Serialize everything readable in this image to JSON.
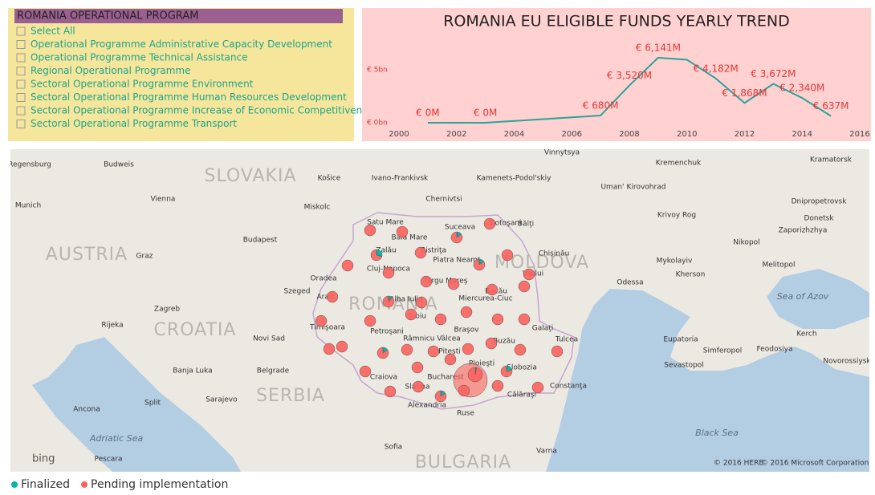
{
  "slicer": {
    "title": "ROMANIA OPERATIONAL PROGRAM",
    "items": [
      "Select All",
      "Operational Programme Administrative Capacity Development",
      "Operational Programme Technical Assistance",
      "Regional Operational Programme",
      "Sectoral Operational Programme Environment",
      "Sectoral Operational Programme Human Resources Development",
      "Sectoral Operational Programme Increase of Economic Competitiveness",
      "Sectoral Operational Programme Transport"
    ]
  },
  "chart_data": {
    "type": "line",
    "title": "ROMANIA EU ELIGIBLE FUNDS YEARLY TREND",
    "x": [
      2001,
      2003,
      2007,
      2008,
      2009,
      2010,
      2011,
      2012,
      2013,
      2014,
      2015
    ],
    "values": [
      0,
      0,
      0.68,
      3.52,
      6.141,
      5.95,
      4.182,
      1.868,
      3.672,
      2.34,
      0.637
    ],
    "value_labels": [
      "€ 0M",
      "€ 0M",
      "€ 680M",
      "€ 3,520M",
      "€ 6,141M",
      null,
      "€ 4,182M",
      "€ 1,868M",
      "€ 3,672M",
      "€ 2,340M",
      "€ 637M"
    ],
    "color": "#2aa39a",
    "label_color": "#e83535",
    "xlim": [
      2000,
      2016
    ],
    "xticks": [
      2000,
      2002,
      2004,
      2006,
      2008,
      2010,
      2012,
      2014,
      2016
    ],
    "ylim": [
      0,
      7.5
    ],
    "yticks": [
      {
        "value": 0,
        "label": "€ 0bn"
      },
      {
        "value": 5,
        "label": "€ 5bn"
      }
    ]
  },
  "map": {
    "legend": [
      {
        "name": "Finalized",
        "color": "#01b8aa"
      },
      {
        "name": "Pending implementation",
        "color": "#fd625e"
      }
    ],
    "bubbles": [
      {
        "pending": 100,
        "finalized": 0
      },
      {
        "pending": 100,
        "finalized": 0
      },
      {
        "pending": 85,
        "finalized": 15
      },
      {
        "pending": 100,
        "finalized": 0
      },
      {
        "pending": 70,
        "finalized": 30
      },
      {
        "pending": 100,
        "finalized": 0
      },
      {
        "pending": 85,
        "finalized": 15
      },
      {
        "pending": 100,
        "finalized": 0
      },
      {
        "pending": 100,
        "finalized": 0
      },
      {
        "pending": 100,
        "finalized": 0
      },
      {
        "pending": 100,
        "finalized": 0
      },
      {
        "pending": 100,
        "finalized": 0
      },
      {
        "pending": 100,
        "finalized": 0
      },
      {
        "pending": 100,
        "finalized": 0
      },
      {
        "pending": 90,
        "finalized": 10
      },
      {
        "pending": 100,
        "finalized": 0
      },
      {
        "pending": 100,
        "finalized": 0
      },
      {
        "pending": 100,
        "finalized": 0
      },
      {
        "pending": 100,
        "finalized": 0
      },
      {
        "pending": 100,
        "finalized": 0
      },
      {
        "pending": 100,
        "finalized": 0
      },
      {
        "pending": 100,
        "finalized": 0
      },
      {
        "pending": 100,
        "finalized": 0
      },
      {
        "pending": 100,
        "finalized": 0
      },
      {
        "pending": 100,
        "finalized": 0
      },
      {
        "pending": 100,
        "finalized": 0
      },
      {
        "pending": 100,
        "finalized": 0
      },
      {
        "pending": 85,
        "finalized": 15
      },
      {
        "pending": 100,
        "finalized": 0
      },
      {
        "pending": 100,
        "finalized": 0
      },
      {
        "pending": 100,
        "finalized": 0
      },
      {
        "pending": 100,
        "finalized": 0
      },
      {
        "pending": 100,
        "finalized": 0
      },
      {
        "pending": 100,
        "finalized": 0
      },
      {
        "pending": 100,
        "finalized": 0
      },
      {
        "pending": 100,
        "finalized": 0
      },
      {
        "pending": 100,
        "finalized": 0
      },
      {
        "pending": 900,
        "finalized": 0
      },
      {
        "pending": 160,
        "finalized": 5
      },
      {
        "pending": 80,
        "finalized": 20
      },
      {
        "pending": 100,
        "finalized": 0
      },
      {
        "pending": 100,
        "finalized": 0
      },
      {
        "pending": 85,
        "finalized": 15
      },
      {
        "pending": 100,
        "finalized": 0
      },
      {
        "pending": 100,
        "finalized": 0
      },
      {
        "pending": 100,
        "finalized": 0
      }
    ],
    "places": [
      "Regensburg",
      "Budweis",
      "SLOVAKIA",
      "Košice",
      "Ivano-Frankivsk",
      "Chernivtsi",
      "Kamenets-Podol'skiy",
      "Vinnytsya",
      "Kremenchuk",
      "Kramatorsk",
      "Munich",
      "Vienna",
      "Uman'",
      "Kirovohrad",
      "Dnipropetrovsk",
      "Donetsk",
      "Krivoy Rog",
      "Budapest",
      "Miskolc",
      "Satu Mare",
      "Baia Mare",
      "Suceava",
      "Botoşani",
      "Bălţi",
      "MOLDOVA",
      "Chişinău",
      "Zaporizhzhya",
      "Nikopol",
      "Mykolayiv",
      "Odessa",
      "Kherson",
      "Melitopol",
      "AUSTRIA",
      "Graz",
      "Oradea",
      "Cluj-Napoca",
      "Zalău",
      "Bistriţa",
      "Piatra Neamţ",
      "Vaslui",
      "Târgu Mureş",
      "Bacău",
      "Arad",
      "Szeged",
      "ROMANIA",
      "Alba Iulia",
      "Sibiu",
      "Braşov",
      "Miercurea-Ciuc",
      "Galaţi",
      "Timişoara",
      "Zagreb",
      "CROATIA",
      "Rijeka",
      "Novi Sad",
      "Belgrade",
      "Petroşani",
      "Râmnicu Vâlcea",
      "Piteşti",
      "Buzău",
      "Tulcea",
      "Craiova",
      "Bucharest",
      "Ploieşti",
      "Slobozia",
      "Constanţa",
      "Călăraşi",
      "Slatina",
      "Alexandria",
      "Ruse",
      "Varna",
      "Sarajevo",
      "SERBIA",
      "Sofia",
      "BULGARIA",
      "Adriatic Sea",
      "Black Sea",
      "Sea of Azov",
      "Sevastopol",
      "Simferopol",
      "Feodosiya",
      "Kerch",
      "Novorossiysk",
      "Eupatoria",
      "Split",
      "Ancona",
      "Pescara",
      "Banja Luka"
    ],
    "logo": "bing",
    "attribution": [
      "© 2016 HERE",
      "© 2016 Microsoft Corporation"
    ]
  }
}
